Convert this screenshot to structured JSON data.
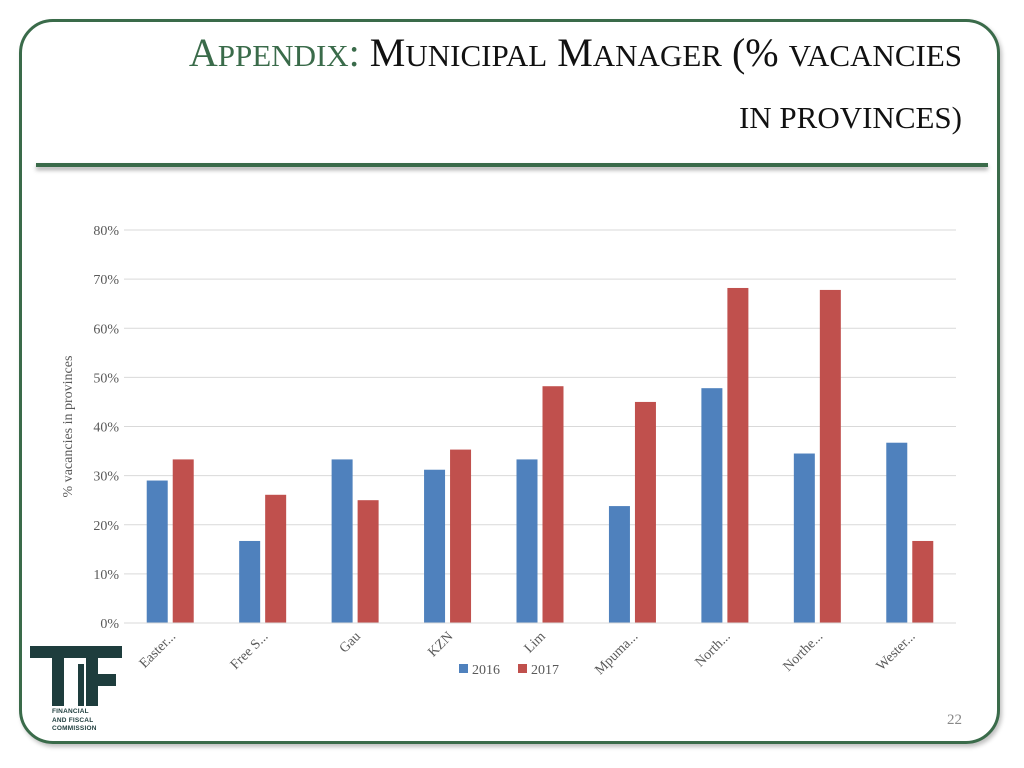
{
  "slide": {
    "title_lead": "A",
    "title_lead_rest": "PPENDIX",
    "title_colon": ":",
    "title_m1": "M",
    "title_unicipal": "UNICIPAL",
    "title_m2": "M",
    "title_anager": "ANAGER",
    "title_paren": "(%",
    "title_vacancies": "VACANCIES",
    "title_line2": "IN PROVINCES)",
    "page_number": "22",
    "logo_text": [
      "FINANCIAL",
      "AND FISCAL",
      "COMMISSION"
    ],
    "logo_icon": "ffc-logo-icon"
  },
  "colors": {
    "accent": "#3a6b4a",
    "series_2016": "#4f81bd",
    "series_2017": "#c0504d"
  },
  "chart_data": {
    "type": "bar",
    "categories": [
      "Easter...",
      "Free S...",
      "Gau",
      "KZN",
      "Lim",
      "Mpuma...",
      "North...",
      "Northe...",
      "Wester..."
    ],
    "series": [
      {
        "name": "2016",
        "values": [
          29,
          16.7,
          33.3,
          31.2,
          33.3,
          23.8,
          47.8,
          34.5,
          36.7
        ]
      },
      {
        "name": "2017",
        "values": [
          33.3,
          26.1,
          25,
          35.3,
          48.2,
          45,
          68.2,
          67.8,
          16.7
        ]
      }
    ],
    "ylabel": "% vacancies in provinces",
    "xlabel": "",
    "ylim": [
      0,
      80
    ],
    "yticks": [
      "0%",
      "10%",
      "20%",
      "30%",
      "40%",
      "50%",
      "60%",
      "70%",
      "80%"
    ],
    "grid": true,
    "legend_position": "bottom"
  }
}
